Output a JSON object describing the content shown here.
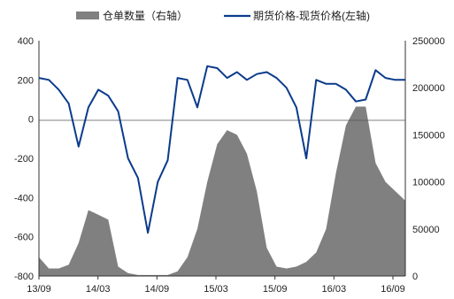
{
  "legend": {
    "items": [
      {
        "label": "仓单数量（右轴）",
        "color": "#808080",
        "kind": "swatch"
      },
      {
        "label": "期货价格-现货价格(左轴)",
        "color": "#0b3b8c",
        "kind": "line"
      }
    ]
  },
  "chart_data": {
    "type": "line",
    "title": "",
    "xlabel": "",
    "ylabel": "",
    "x_ticks": [
      "13/09",
      "14/03",
      "14/09",
      "15/03",
      "15/09",
      "16/03",
      "16/09"
    ],
    "y_left": {
      "ylim": [
        -800,
        400
      ],
      "ticks": [
        "400",
        "200",
        "0",
        "-200",
        "-400",
        "-600",
        "-800"
      ],
      "tick_values": [
        400,
        200,
        0,
        -200,
        -400,
        -600,
        -800
      ]
    },
    "y_right": {
      "ylim": [
        0,
        250000
      ],
      "ticks": [
        "250000",
        "200000",
        "150000",
        "100000",
        "50000",
        "0"
      ],
      "tick_values": [
        250000,
        200000,
        150000,
        100000,
        50000,
        0
      ]
    },
    "x_range": [
      "2013-09",
      "2016-10"
    ],
    "grid": false,
    "legend_position": "top",
    "series": [
      {
        "name": "期货价格-现货价格(左轴)",
        "axis": "left",
        "type": "line",
        "color": "#0b3b8c",
        "x": [
          "2013-09",
          "2013-10",
          "2013-11",
          "2013-12",
          "2014-01",
          "2014-02",
          "2014-03",
          "2014-04",
          "2014-05",
          "2014-06",
          "2014-07",
          "2014-08",
          "2014-09",
          "2014-10",
          "2014-11",
          "2014-12",
          "2015-01",
          "2015-02",
          "2015-03",
          "2015-04",
          "2015-05",
          "2015-06",
          "2015-07",
          "2015-08",
          "2015-09",
          "2015-10",
          "2015-11",
          "2015-12",
          "2016-01",
          "2016-02",
          "2016-03",
          "2016-04",
          "2016-05",
          "2016-06",
          "2016-07",
          "2016-08",
          "2016-09",
          "2016-10"
        ],
        "values": [
          210,
          200,
          150,
          80,
          -140,
          60,
          150,
          120,
          40,
          -200,
          -300,
          -580,
          -320,
          -210,
          210,
          200,
          60,
          270,
          260,
          210,
          240,
          200,
          230,
          240,
          210,
          160,
          60,
          -200,
          200,
          180,
          180,
          150,
          90,
          100,
          250,
          210,
          200,
          200
        ]
      },
      {
        "name": "仓单数量（右轴）",
        "axis": "right",
        "type": "area",
        "color": "#808080",
        "x": [
          "2013-09",
          "2013-10",
          "2013-11",
          "2013-12",
          "2014-01",
          "2014-02",
          "2014-03",
          "2014-04",
          "2014-05",
          "2014-06",
          "2014-07",
          "2014-08",
          "2014-09",
          "2014-10",
          "2014-11",
          "2014-12",
          "2015-01",
          "2015-02",
          "2015-03",
          "2015-04",
          "2015-05",
          "2015-06",
          "2015-07",
          "2015-08",
          "2015-09",
          "2015-10",
          "2015-11",
          "2015-12",
          "2016-01",
          "2016-02",
          "2016-03",
          "2016-04",
          "2016-05",
          "2016-06",
          "2016-07",
          "2016-08",
          "2016-09",
          "2016-10"
        ],
        "values": [
          20000,
          8000,
          8000,
          12000,
          35000,
          70000,
          65000,
          60000,
          10000,
          3000,
          1000,
          1000,
          1000,
          1000,
          5000,
          20000,
          50000,
          100000,
          140000,
          155000,
          150000,
          130000,
          90000,
          30000,
          10000,
          8000,
          10000,
          15000,
          25000,
          50000,
          110000,
          160000,
          180000,
          180000,
          120000,
          100000,
          90000,
          80000
        ]
      }
    ]
  }
}
